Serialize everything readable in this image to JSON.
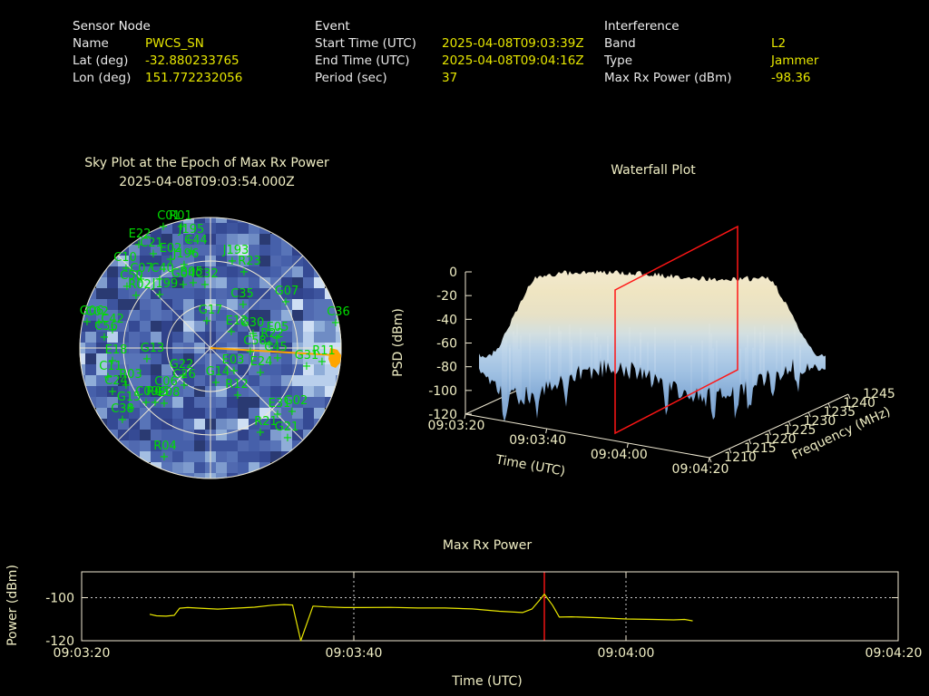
{
  "colors": {
    "background": "#000000",
    "header_label": "#e8e8e8",
    "header_value": "#e6e600",
    "plot_text": "#f0eec4",
    "satellite_green": "#00dd00",
    "grid_cream": "#efe9d2",
    "interference_orange": "#ffa500",
    "marker_red": "#ff1515",
    "data_line_yellow": "#e8e600",
    "dotted_grid": "#cccccc"
  },
  "header": {
    "sensor": {
      "title": "Sensor Node",
      "rows": [
        {
          "label": "Name",
          "value": "PWCS_SN"
        },
        {
          "label": "Lat (deg)",
          "value": "-32.880233765"
        },
        {
          "label": "Lon (deg)",
          "value": "151.772232056"
        }
      ]
    },
    "event": {
      "title": "Event",
      "rows": [
        {
          "label": "Start Time (UTC)",
          "value": "2025-04-08T09:03:39Z"
        },
        {
          "label": "End Time (UTC)",
          "value": "2025-04-08T09:04:16Z"
        },
        {
          "label": "Period (sec)",
          "value": "37"
        }
      ]
    },
    "interference": {
      "title": "Interference",
      "rows": [
        {
          "label": "Band",
          "value": "L2"
        },
        {
          "label": "Type",
          "value": "Jammer"
        },
        {
          "label": "Max Rx Power (dBm)",
          "value": "-98.36"
        }
      ]
    }
  },
  "sky": {
    "title": "Sky Plot at the Epoch of Max Rx Power",
    "subtitle": "2025-04-08T09:03:54.000Z"
  },
  "waterfall": {
    "title": "Waterfall Plot",
    "z_axis_label": "PSD (dBm)",
    "time_axis_label": "Time (UTC)",
    "freq_axis_label": "Frequency (MHz)"
  },
  "power": {
    "title": "Max Rx Power",
    "y_axis_label": "Power (dBm)",
    "x_axis_label": "Time (UTC)"
  },
  "chart_data": [
    {
      "id": "sky_plot",
      "type": "heatmap",
      "projection": "polar skyplot, elevation rings at 30 deg steps, azimuth spokes every 45 deg",
      "title": "Sky Plot at the Epoch of Max Rx Power",
      "subtitle": "2025-04-08T09:03:54.000Z",
      "interference_bearing": {
        "line_from_center_to": [
          288,
          158
        ],
        "marker_at": [
          287,
          160
        ],
        "color": "#ffa500"
      },
      "satellites": [
        [
          "C01",
          104,
          8
        ],
        [
          "R01",
          117,
          8
        ],
        [
          "E22",
          72,
          28
        ],
        [
          "J195",
          129,
          23
        ],
        [
          "C44",
          134,
          35
        ],
        [
          "C21",
          85,
          38
        ],
        [
          "E02",
          106,
          44
        ],
        [
          "J196",
          123,
          50
        ],
        [
          "J193",
          178,
          46
        ],
        [
          "R23",
          193,
          58
        ],
        [
          "C10",
          56,
          54
        ],
        [
          "C07",
          74,
          66
        ],
        [
          "C40",
          97,
          66
        ],
        [
          "C50",
          63,
          74
        ],
        [
          "B05",
          129,
          70
        ],
        [
          "G04",
          120,
          72
        ],
        [
          "C32",
          146,
          72
        ],
        [
          "R02",
          72,
          84
        ],
        [
          "J199",
          100,
          83
        ],
        [
          "C35",
          185,
          94
        ],
        [
          "G07",
          234,
          91
        ],
        [
          "C36",
          291,
          114
        ],
        [
          "G06",
          19,
          113
        ],
        [
          "C02",
          25,
          114
        ],
        [
          "C42",
          42,
          122
        ],
        [
          "C56",
          35,
          130
        ],
        [
          "G17",
          150,
          112
        ],
        [
          "E12",
          179,
          124
        ],
        [
          "G30",
          196,
          126
        ],
        [
          "E05",
          224,
          131
        ],
        [
          "R22",
          218,
          138
        ],
        [
          "C58",
          199,
          146
        ],
        [
          "C45",
          222,
          153
        ],
        [
          "G31",
          256,
          162
        ],
        [
          "R11",
          275,
          157
        ],
        [
          "E18",
          46,
          156
        ],
        [
          "G13",
          86,
          154
        ],
        [
          "E03",
          175,
          167
        ],
        [
          "E24",
          206,
          169
        ],
        [
          "C11",
          40,
          174
        ],
        [
          "R03",
          62,
          183
        ],
        [
          "G22",
          118,
          172
        ],
        [
          "C26",
          121,
          183
        ],
        [
          "G14",
          158,
          180
        ],
        [
          "C24",
          46,
          190
        ],
        [
          "C06",
          101,
          191
        ],
        [
          "R12",
          179,
          194
        ],
        [
          "C09",
          80,
          202
        ],
        [
          "R05",
          92,
          202
        ],
        [
          "E08",
          104,
          203
        ],
        [
          "G15",
          60,
          208
        ],
        [
          "C38",
          53,
          221
        ],
        [
          "E31",
          226,
          215
        ],
        [
          "G02",
          244,
          212
        ],
        [
          "R21",
          211,
          235
        ],
        [
          "G21",
          234,
          241
        ],
        [
          "R04",
          100,
          262
        ]
      ]
    },
    {
      "id": "waterfall",
      "type": "surface",
      "title": "Waterfall Plot",
      "zlabel": "PSD (dBm)",
      "xlabel": "Time (UTC)",
      "ylabel": "Frequency (MHz)",
      "z_ticks": [
        "0",
        "-20",
        "-40",
        "-60",
        "-80",
        "-100",
        "-120"
      ],
      "time_ticks": [
        "09:03:20",
        "09:03:40",
        "09:04:00",
        "09:04:20"
      ],
      "freq_ticks": [
        "1210",
        "1215",
        "1220",
        "1225",
        "1230",
        "1235",
        "1240",
        "1245"
      ],
      "zlim": [
        -120,
        0
      ],
      "surface_summary": "broadband plateau near -20 dBm across ~1212-1243 MHz between ~09:03:25 and ~09:04:05; noise floor near -100 dBm at band edges",
      "slice_plane_time": "09:03:54"
    },
    {
      "id": "max_rx_power",
      "type": "line",
      "title": "Max Rx Power",
      "xlabel": "Time (UTC)",
      "ylabel": "Power (dBm)",
      "x_ticks": [
        "09:03:20",
        "09:03:40",
        "09:04:00",
        "09:04:20"
      ],
      "y_ticks": [
        "-100",
        "-120"
      ],
      "ylim": [
        -120,
        -88
      ],
      "x_span_seconds": 60,
      "dotted_hline_dbm": -100,
      "dotted_vlines_s": [
        20,
        40
      ],
      "red_marker_s": 34,
      "peak_dbm": -98.36,
      "points_s_dbm": [
        [
          5.0,
          -107.7
        ],
        [
          5.5,
          -108.4
        ],
        [
          6.2,
          -108.6
        ],
        [
          6.8,
          -108.2
        ],
        [
          7.2,
          -104.9
        ],
        [
          7.8,
          -104.6
        ],
        [
          8.7,
          -104.9
        ],
        [
          10,
          -105.3
        ],
        [
          11.3,
          -104.9
        ],
        [
          12.7,
          -104.4
        ],
        [
          14,
          -103.5
        ],
        [
          14.9,
          -103.2
        ],
        [
          15.5,
          -103.4
        ],
        [
          16.1,
          -120
        ],
        [
          17,
          -103.9
        ],
        [
          18,
          -104.3
        ],
        [
          19.3,
          -104.6
        ],
        [
          20.7,
          -104.6
        ],
        [
          22.7,
          -104.5
        ],
        [
          24.7,
          -104.8
        ],
        [
          26.7,
          -104.8
        ],
        [
          28.7,
          -105.2
        ],
        [
          30.7,
          -106.3
        ],
        [
          32.4,
          -106.9
        ],
        [
          33.1,
          -105.2
        ],
        [
          33.6,
          -101.5
        ],
        [
          34,
          -98.36
        ],
        [
          34.6,
          -103.5
        ],
        [
          35.1,
          -109.0
        ],
        [
          36,
          -108.9
        ],
        [
          38,
          -109.3
        ],
        [
          40,
          -109.9
        ],
        [
          42,
          -110.1
        ],
        [
          43.5,
          -110.3
        ],
        [
          44.3,
          -110.1
        ],
        [
          44.9,
          -110.8
        ]
      ]
    }
  ]
}
